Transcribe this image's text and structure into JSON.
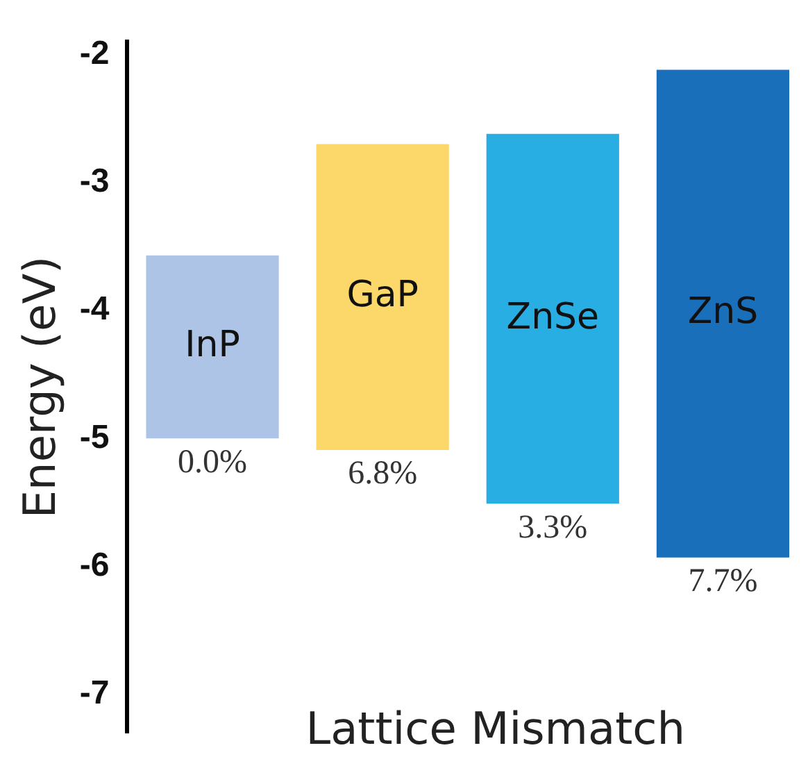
{
  "chart_data": {
    "type": "bar",
    "ylabel": "Energy (eV)",
    "categories": [
      "InP",
      "GaP",
      "ZnSe",
      "ZnS"
    ],
    "base": [
      -5.0,
      -5.09,
      -5.51,
      -5.93
    ],
    "values": [
      1.43,
      2.39,
      2.89,
      3.81
    ],
    "colors": [
      "#aec4e6",
      "#fcd76a",
      "#29aee3",
      "#1a6fbb"
    ],
    "ylim": [
      -7.3,
      -1.9
    ],
    "yticks": [
      -2,
      -3,
      -4,
      -5,
      -6,
      -7
    ],
    "grid": false,
    "legend": false,
    "annotations": [
      {
        "text": "0.0%",
        "x": "InP",
        "y": -5.0
      },
      {
        "text": "6.8%",
        "x": "GaP",
        "y": -5.09
      },
      {
        "text": "3.3%",
        "x": "ZnSe",
        "y": -5.51
      },
      {
        "text": "7.7%",
        "x": "ZnS",
        "y": -5.93
      },
      "Lattice Mismatch"
    ]
  }
}
